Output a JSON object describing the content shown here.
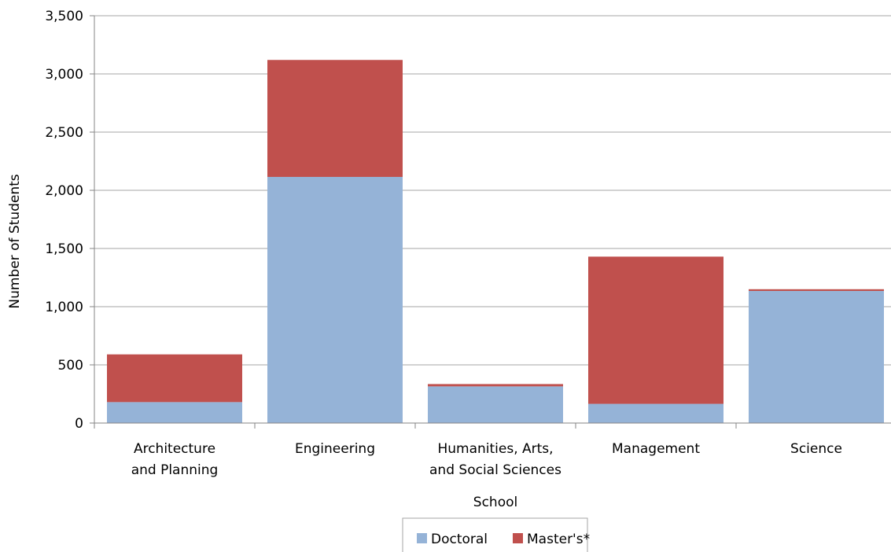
{
  "chart_data": {
    "type": "bar",
    "stacked": true,
    "title": "",
    "xlabel": "School",
    "ylabel": "Number of Students",
    "ylim": [
      0,
      3500
    ],
    "yticks": [
      "0",
      "500",
      "1,000",
      "1,500",
      "2,000",
      "2,500",
      "3,000",
      "3,500"
    ],
    "ytick_values": [
      0,
      500,
      1000,
      1500,
      2000,
      2500,
      3000,
      3500
    ],
    "categories": [
      [
        "Architecture",
        "and Planning"
      ],
      [
        "Engineering"
      ],
      [
        "Humanities, Arts,",
        "and Social Sciences"
      ],
      [
        "Management"
      ],
      [
        "Science"
      ]
    ],
    "series": [
      {
        "name": "Doctoral",
        "color": "#95b3d7",
        "values": [
          180,
          2115,
          315,
          165,
          1135
        ]
      },
      {
        "name": "Master's*",
        "color": "#c0504d",
        "values": [
          410,
          1005,
          20,
          1265,
          15
        ]
      }
    ],
    "grid": true,
    "gridline_color": "#a6a6a6",
    "legend_position": "bottom"
  }
}
